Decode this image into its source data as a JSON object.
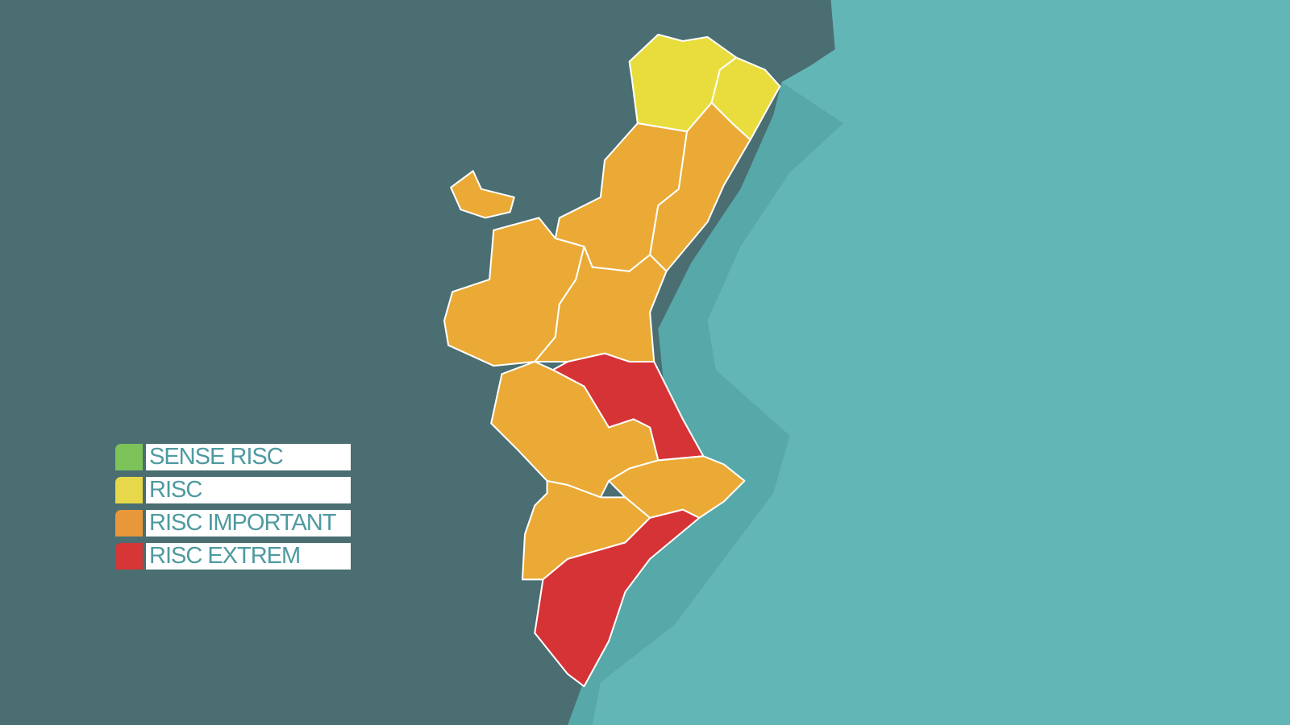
{
  "colors": {
    "land_background": "#4a6e72",
    "sea": "#62b7b6",
    "shelf": "#57a8a8",
    "border": "#ffffff"
  },
  "legend": [
    {
      "label": "SENSE RISC",
      "color": "#7cc35a"
    },
    {
      "label": "RISC",
      "color": "#e6d84a"
    },
    {
      "label": "RISC IMPORTANT",
      "color": "#e8973a"
    },
    {
      "label": "RISC EXTREM",
      "color": "#d63636"
    }
  ],
  "regions": [
    {
      "level": "RISC",
      "color": "#e8dd3c"
    },
    {
      "level": "RISC",
      "color": "#e8dd3c"
    },
    {
      "level": "RISC IMPORTANT",
      "color": "#eaaa35"
    },
    {
      "level": "RISC IMPORTANT",
      "color": "#eaaa35"
    },
    {
      "level": "RISC IMPORTANT",
      "color": "#eaaa35"
    },
    {
      "level": "RISC IMPORTANT",
      "color": "#eaaa35"
    },
    {
      "level": "RISC IMPORTANT",
      "color": "#eaaa35"
    },
    {
      "level": "RISC EXTREM",
      "color": "#d63336"
    },
    {
      "level": "RISC IMPORTANT",
      "color": "#eaaa35"
    },
    {
      "level": "RISC IMPORTANT",
      "color": "#eaaa35"
    },
    {
      "level": "RISC IMPORTANT",
      "color": "#eaaa35"
    },
    {
      "level": "RISC EXTREM",
      "color": "#d63336"
    }
  ]
}
